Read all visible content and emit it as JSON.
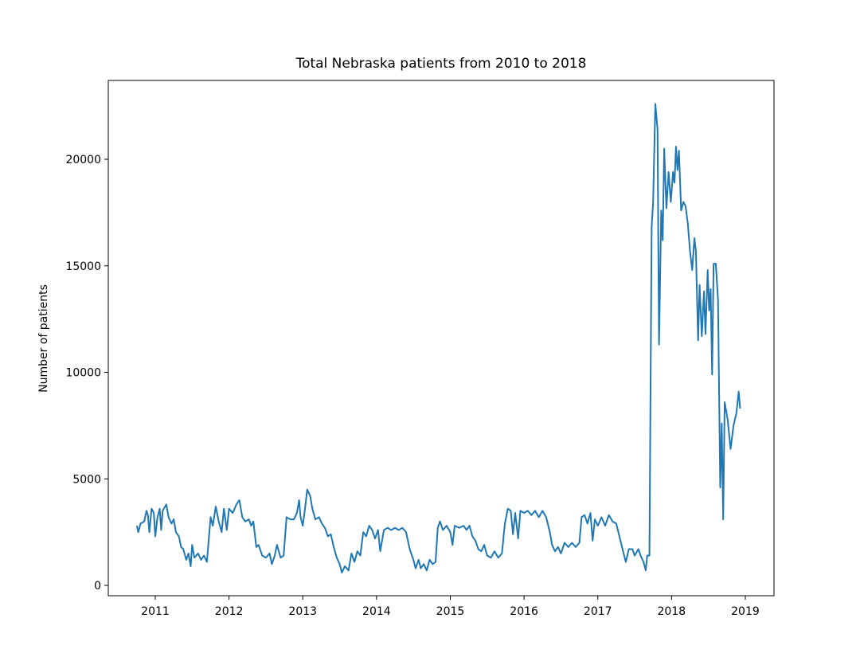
{
  "chart_data": {
    "type": "line",
    "title": "Total Nebraska patients from 2010 to 2018",
    "ylabel": "Number of patients",
    "x": [
      2010.75,
      2010.77,
      2010.8,
      2010.85,
      2010.88,
      2010.9,
      2010.92,
      2010.95,
      2010.98,
      2011.0,
      2011.03,
      2011.06,
      2011.08,
      2011.1,
      2011.15,
      2011.18,
      2011.22,
      2011.25,
      2011.28,
      2011.32,
      2011.35,
      2011.38,
      2011.42,
      2011.45,
      2011.48,
      2011.5,
      2011.53,
      2011.58,
      2011.62,
      2011.66,
      2011.7,
      2011.75,
      2011.78,
      2011.82,
      2011.86,
      2011.9,
      2011.93,
      2011.97,
      2012.0,
      2012.05,
      2012.1,
      2012.14,
      2012.18,
      2012.22,
      2012.27,
      2012.3,
      2012.33,
      2012.37,
      2012.4,
      2012.45,
      2012.5,
      2012.55,
      2012.58,
      2012.62,
      2012.65,
      2012.7,
      2012.74,
      2012.78,
      2012.83,
      2012.88,
      2012.92,
      2012.95,
      2012.97,
      2013.0,
      2013.03,
      2013.06,
      2013.1,
      2013.13,
      2013.17,
      2013.22,
      2013.26,
      2013.3,
      2013.34,
      2013.38,
      2013.42,
      2013.46,
      2013.5,
      2013.53,
      2013.57,
      2013.62,
      2013.66,
      2013.7,
      2013.74,
      2013.78,
      2013.82,
      2013.86,
      2013.9,
      2013.94,
      2013.98,
      2014.02,
      2014.05,
      2014.1,
      2014.15,
      2014.2,
      2014.25,
      2014.3,
      2014.35,
      2014.4,
      2014.45,
      2014.5,
      2014.53,
      2014.57,
      2014.6,
      2014.64,
      2014.68,
      2014.72,
      2014.76,
      2014.8,
      2014.83,
      2014.86,
      2014.9,
      2014.95,
      2015.0,
      2015.03,
      2015.06,
      2015.12,
      2015.18,
      2015.22,
      2015.26,
      2015.3,
      2015.34,
      2015.38,
      2015.42,
      2015.46,
      2015.5,
      2015.55,
      2015.6,
      2015.65,
      2015.7,
      2015.74,
      2015.78,
      2015.82,
      2015.85,
      2015.88,
      2015.92,
      2015.95,
      2016.0,
      2016.05,
      2016.1,
      2016.15,
      2016.2,
      2016.25,
      2016.3,
      2016.35,
      2016.38,
      2016.42,
      2016.46,
      2016.5,
      2016.55,
      2016.6,
      2016.65,
      2016.7,
      2016.75,
      2016.78,
      2016.82,
      2016.86,
      2016.9,
      2016.93,
      2016.96,
      2017.0,
      2017.05,
      2017.1,
      2017.15,
      2017.2,
      2017.25,
      2017.3,
      2017.35,
      2017.38,
      2017.42,
      2017.47,
      2017.5,
      2017.55,
      2017.58,
      2017.62,
      2017.65,
      2017.67,
      2017.7,
      2017.73,
      2017.75,
      2017.78,
      2017.81,
      2017.83,
      2017.86,
      2017.88,
      2017.9,
      2017.93,
      2017.96,
      2017.99,
      2018.02,
      2018.04,
      2018.06,
      2018.08,
      2018.1,
      2018.13,
      2018.16,
      2018.19,
      2018.22,
      2018.25,
      2018.28,
      2018.31,
      2018.33,
      2018.36,
      2018.38,
      2018.41,
      2018.44,
      2018.46,
      2018.49,
      2018.51,
      2018.53,
      2018.55,
      2018.57,
      2018.6,
      2018.63,
      2018.66,
      2018.68,
      2018.7,
      2018.72,
      2018.76,
      2018.8,
      2018.84,
      2018.88,
      2018.91,
      2018.93
    ],
    "series": [
      {
        "color": "#1f77b4",
        "values": [
          2800,
          2500,
          2900,
          3000,
          3500,
          3300,
          2500,
          3600,
          3400,
          2300,
          3200,
          3600,
          2600,
          3500,
          3800,
          3200,
          2900,
          3100,
          2500,
          2300,
          1800,
          1700,
          1200,
          1500,
          900,
          1900,
          1300,
          1500,
          1200,
          1400,
          1100,
          3200,
          2800,
          3700,
          3000,
          2500,
          3600,
          2600,
          3600,
          3400,
          3800,
          4000,
          3200,
          3000,
          3100,
          2800,
          3000,
          1800,
          1900,
          1400,
          1300,
          1500,
          1000,
          1400,
          1900,
          1300,
          1400,
          3200,
          3100,
          3100,
          3400,
          4000,
          3200,
          2800,
          3600,
          4500,
          4200,
          3600,
          3100,
          3200,
          2900,
          2700,
          2300,
          2400,
          1800,
          1300,
          1000,
          600,
          900,
          700,
          1500,
          1100,
          1600,
          1400,
          2500,
          2300,
          2800,
          2600,
          2200,
          2600,
          1600,
          2600,
          2700,
          2600,
          2700,
          2600,
          2700,
          2500,
          1700,
          1200,
          800,
          1200,
          800,
          1000,
          700,
          1200,
          1000,
          1100,
          2700,
          3000,
          2600,
          2800,
          2500,
          1900,
          2800,
          2700,
          2800,
          2600,
          2800,
          2300,
          2100,
          1700,
          1600,
          1900,
          1400,
          1300,
          1600,
          1300,
          1500,
          2900,
          3600,
          3500,
          2400,
          3400,
          2200,
          3500,
          3400,
          3500,
          3300,
          3500,
          3200,
          3500,
          3200,
          2500,
          1900,
          1600,
          1800,
          1500,
          2000,
          1800,
          2000,
          1800,
          2000,
          3200,
          3300,
          2900,
          3400,
          2100,
          3100,
          2800,
          3200,
          2800,
          3300,
          3000,
          2900,
          2200,
          1500,
          1100,
          1700,
          1700,
          1400,
          1700,
          1400,
          1100,
          700,
          1400,
          1400,
          16800,
          18000,
          22600,
          21400,
          11300,
          17600,
          16200,
          20500,
          17700,
          19400,
          18000,
          19400,
          18900,
          20600,
          19500,
          20400,
          17600,
          18000,
          17800,
          17000,
          15700,
          14800,
          16300,
          15700,
          11500,
          14100,
          11700,
          13800,
          11800,
          14800,
          12900,
          13900,
          9900,
          15100,
          15100,
          13400,
          4600,
          7600,
          3100,
          8600,
          7800,
          6400,
          7500,
          8100,
          9100,
          8300
        ]
      }
    ],
    "xlim": [
      2010.363,
      2019.389
    ],
    "xticks": [
      2011,
      2012,
      2013,
      2014,
      2015,
      2016,
      2017,
      2018,
      2019
    ],
    "ylim": [
      -486,
      23701
    ],
    "yticks": [
      0,
      5000,
      10000,
      15000,
      20000
    ],
    "grid": false
  }
}
